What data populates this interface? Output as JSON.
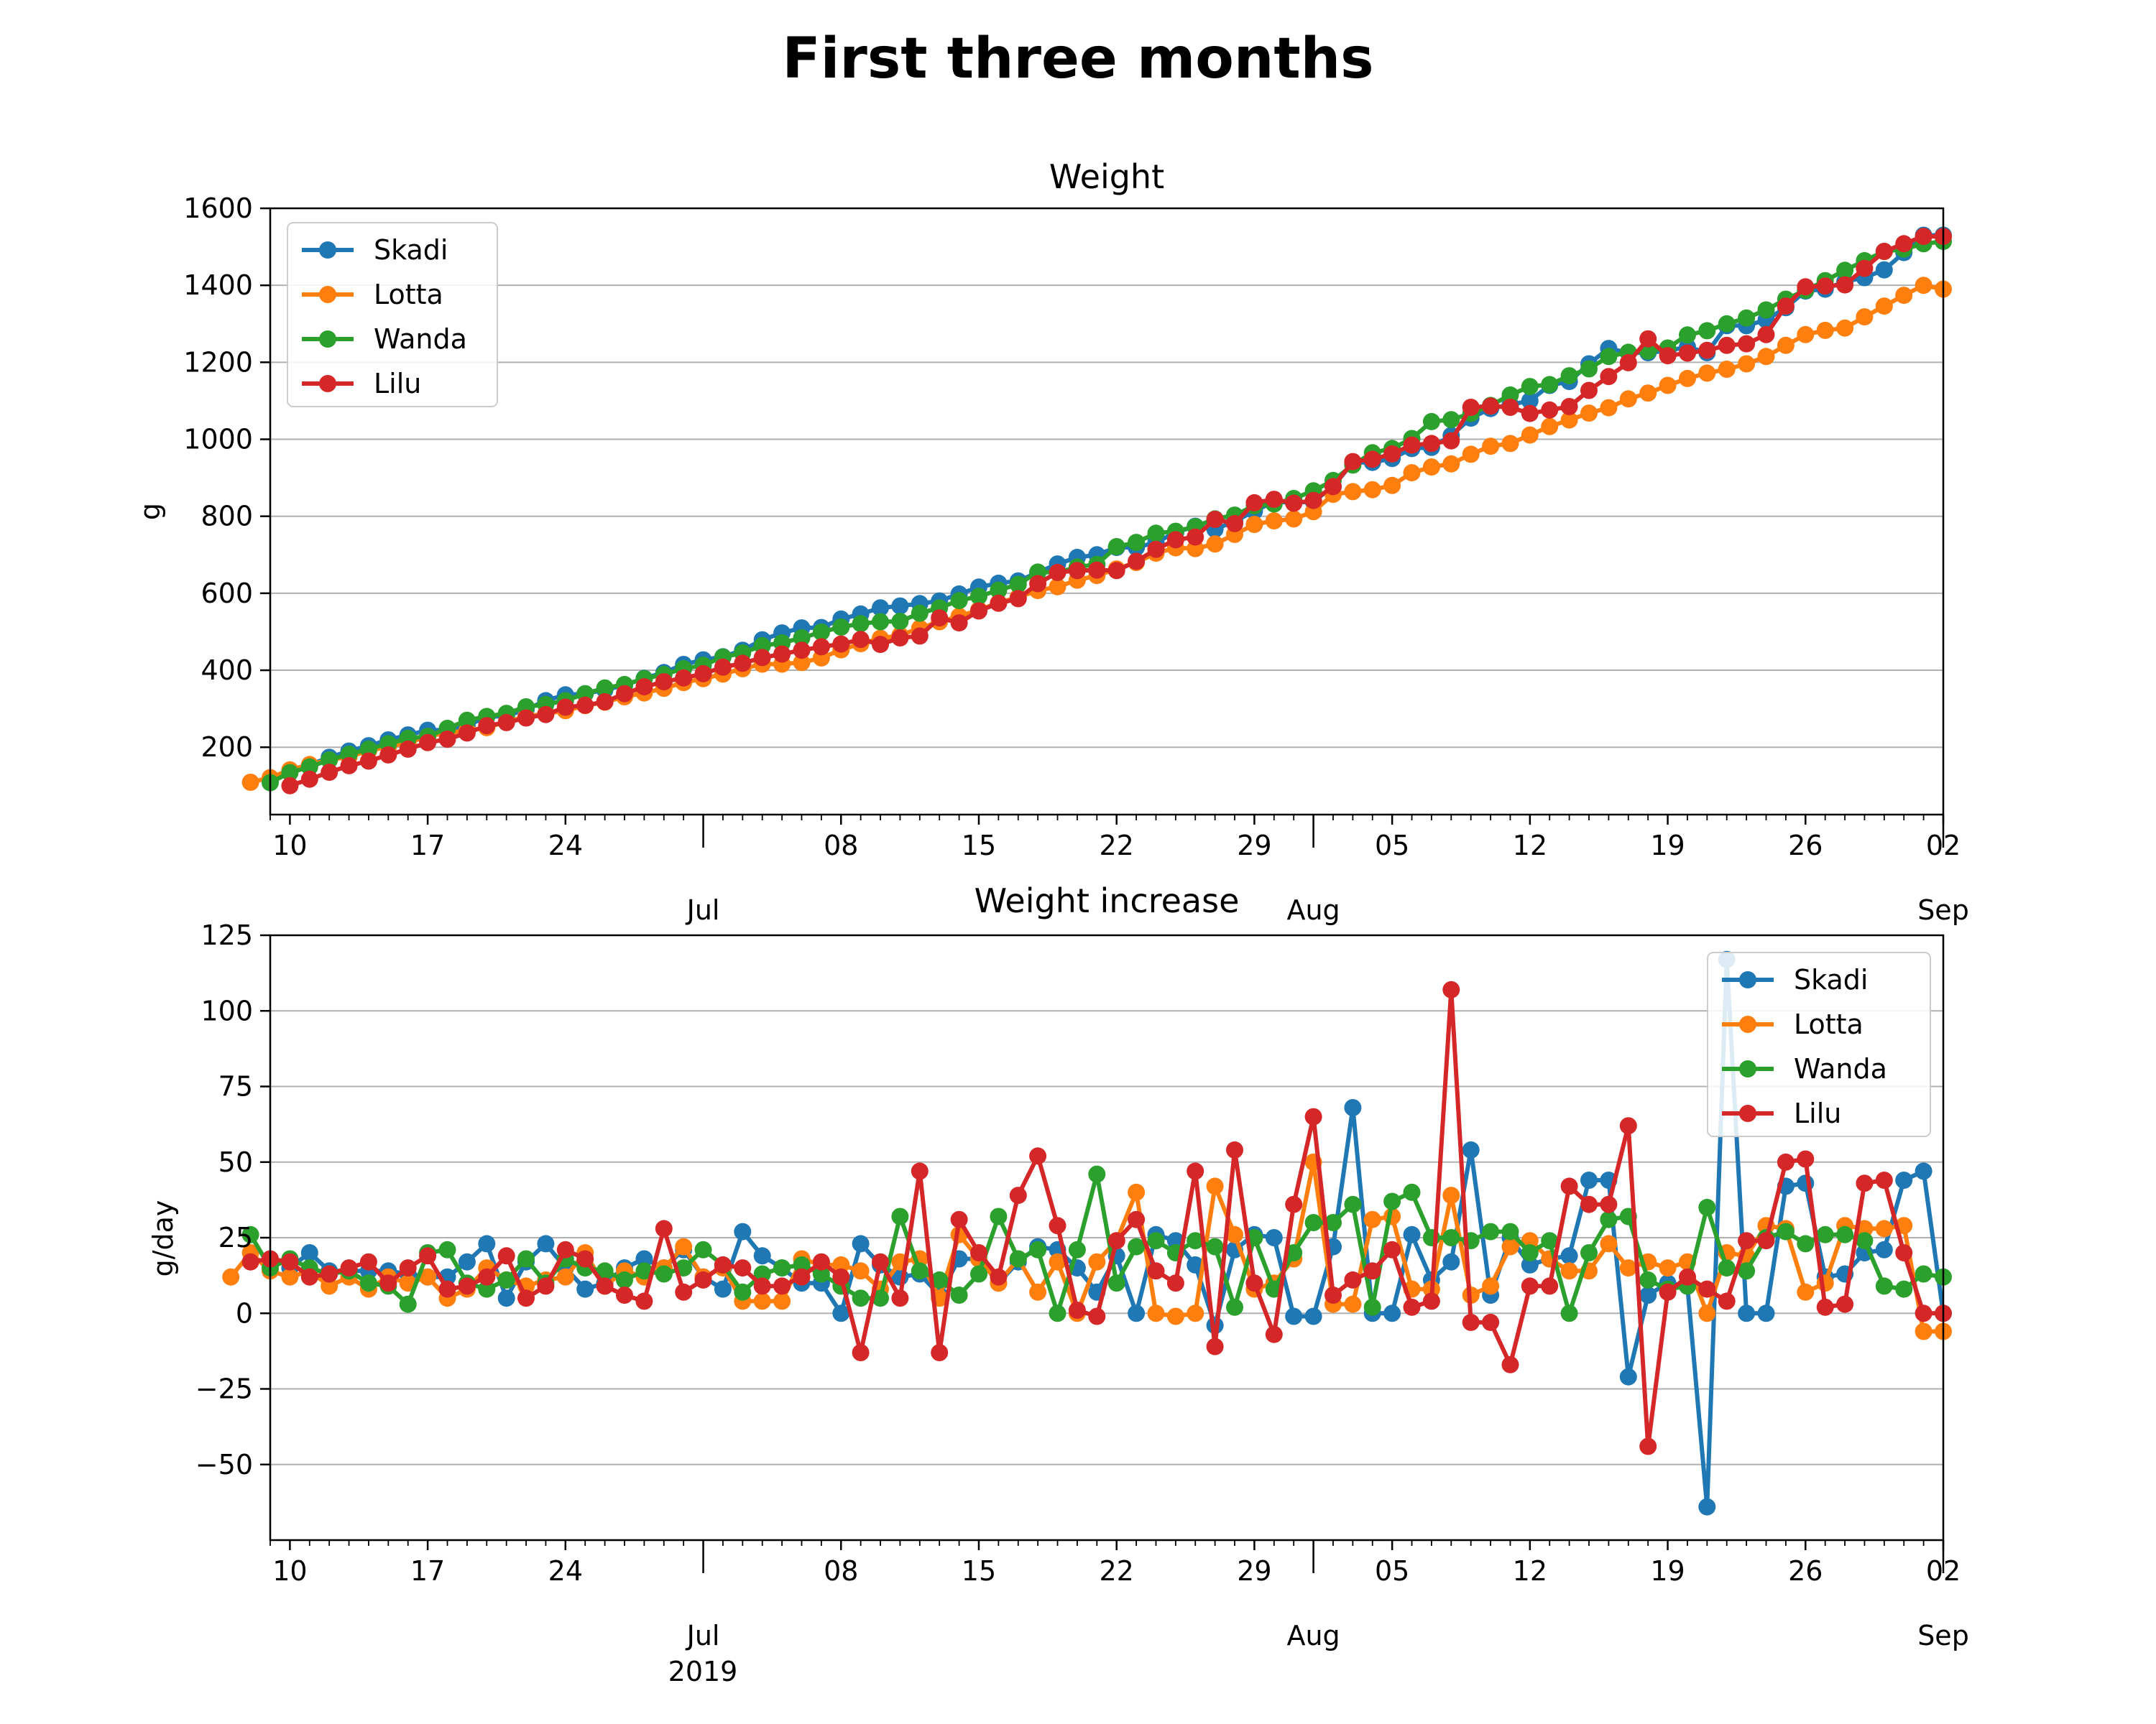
{
  "title": "First three months",
  "colors": {
    "Skadi": "#1f77b4",
    "Lotta": "#ff7f0e",
    "Wanda": "#2ca02c",
    "Lilu": "#d62728"
  },
  "chart_data": [
    {
      "type": "line",
      "title": "Weight",
      "ylabel": "g",
      "xlabel": "",
      "ylim": [
        25,
        1600
      ],
      "yticks": [
        200,
        400,
        600,
        800,
        1000,
        1200,
        1400,
        1600
      ],
      "grid": "y",
      "legend": "top-left",
      "x_start_date": "2019-06-09",
      "x_end_date": "2019-09-02",
      "x_day_ticks": [
        {
          "day": 1,
          "label": "10"
        },
        {
          "day": 8,
          "label": "17"
        },
        {
          "day": 15,
          "label": "24"
        },
        {
          "day": 29,
          "label": "08"
        },
        {
          "day": 36,
          "label": "15"
        },
        {
          "day": 43,
          "label": "22"
        },
        {
          "day": 50,
          "label": "29"
        },
        {
          "day": 57,
          "label": "05"
        },
        {
          "day": 64,
          "label": "12"
        },
        {
          "day": 71,
          "label": "19"
        },
        {
          "day": 78,
          "label": "26"
        },
        {
          "day": 85,
          "label": "02"
        }
      ],
      "x_month_ticks": [
        {
          "day": 22,
          "label": "Jul"
        },
        {
          "day": 53,
          "label": "Aug"
        },
        {
          "day": 85,
          "label": "Sep"
        }
      ],
      "series": [
        {
          "name": "Skadi",
          "values": [
            113,
            140,
            154,
            174,
            190,
            204,
            219,
            232,
            244,
            245,
            256,
            279,
            281,
            298,
            321,
            336,
            339,
            349,
            361,
            379,
            394,
            415,
            427,
            435,
            452,
            479,
            497,
            510,
            511,
            533,
            546,
            562,
            567,
            573,
            580,
            598,
            616,
            626,
            632,
            654,
            676,
            693,
            700,
            719,
            719,
            732,
            758,
            774,
            766,
            787,
            813,
            838,
            835,
            838,
            877,
            940,
            940,
            950,
            976,
            979,
            1010,
            1055,
            1080,
            1090,
            1100,
            1140,
            1150,
            1196,
            1236,
            1225,
            1225,
            1230,
            1240,
            1225,
            1295,
            1295,
            1310,
            1342,
            1385,
            1390,
            1410,
            1420,
            1440,
            1485,
            1530,
            1530
          ]
        },
        {
          "name": "Lotta",
          "values": [
            109,
            121,
            141,
            155,
            167,
            175,
            191,
            201,
            212,
            228,
            238,
            243,
            251,
            266,
            280,
            287,
            295,
            308,
            317,
            331,
            341,
            353,
            368,
            378,
            390,
            404,
            416,
            416,
            420,
            432,
            453,
            469,
            483,
            491,
            509,
            526,
            540,
            557,
            575,
            590,
            607,
            617,
            634,
            646,
            663,
            680,
            704,
            718,
            716,
            728,
            753,
            779,
            788,
            793,
            812,
            857,
            864,
            869,
            880,
            913,
            928,
            936,
            961,
            982,
            989,
            1011,
            1033,
            1050,
            1068,
            1082,
            1105,
            1120,
            1140,
            1158,
            1172,
            1182,
            1196,
            1215,
            1244,
            1272,
            1283,
            1289,
            1318,
            1346,
            1374,
            1400,
            1390
          ]
        },
        {
          "name": "Wanda",
          "values": [
            108,
            134,
            149,
            167,
            182,
            195,
            209,
            223,
            228,
            249,
            270,
            280,
            288,
            305,
            311,
            321,
            339,
            354,
            363,
            378,
            389,
            404,
            413,
            434,
            445,
            464,
            471,
            484,
            499,
            512,
            521,
            526,
            527,
            548,
            562,
            581,
            592,
            608,
            623,
            655,
            654,
            668,
            675,
            721,
            732,
            756,
            761,
            773,
            793,
            803,
            827,
            832,
            846,
            866,
            893,
            933,
            965,
            976,
            1002,
            1046,
            1051,
            1067,
            1088,
            1115,
            1137,
            1142,
            1165,
            1183,
            1215,
            1226,
            1229,
            1237,
            1271,
            1282,
            1300,
            1315,
            1336,
            1364,
            1387,
            1412,
            1439,
            1464,
            1488,
            1494,
            1508,
            1514
          ]
        },
        {
          "name": "Lilu",
          "values": [
            100,
            117,
            135,
            152,
            164,
            180,
            195,
            212,
            221,
            237,
            256,
            264,
            276,
            285,
            304,
            309,
            318,
            339,
            357,
            370,
            380,
            391,
            408,
            418,
            433,
            442,
            452,
            461,
            468,
            480,
            467,
            484,
            489,
            536,
            523,
            554,
            574,
            586,
            625,
            654,
            659,
            660,
            659,
            683,
            714,
            739,
            746,
            792,
            781,
            835,
            844,
            834,
            841,
            877,
            942,
            948,
            962,
            985,
            989,
            996,
            1083,
            1086,
            1083,
            1067,
            1076,
            1085,
            1127,
            1163,
            1199,
            1261,
            1217,
            1224,
            1231,
            1244,
            1248,
            1272,
            1346,
            1396,
            1398,
            1401,
            1444,
            1488,
            1508,
            1527,
            1527
          ]
        }
      ]
    },
    {
      "type": "line",
      "title": "Weight increase",
      "ylabel": "g/day",
      "xlabel": "2019",
      "ylim": [
        -75,
        125
      ],
      "yticks": [
        -50,
        -25,
        0,
        25,
        50,
        75,
        100,
        125
      ],
      "grid": "y",
      "legend": "top-right",
      "x_start_date": "2019-06-09",
      "x_end_date": "2019-09-02",
      "x_day_ticks": [
        {
          "day": 1,
          "label": "10"
        },
        {
          "day": 8,
          "label": "17"
        },
        {
          "day": 15,
          "label": "24"
        },
        {
          "day": 29,
          "label": "08"
        },
        {
          "day": 36,
          "label": "15"
        },
        {
          "day": 43,
          "label": "22"
        },
        {
          "day": 50,
          "label": "29"
        },
        {
          "day": 57,
          "label": "05"
        },
        {
          "day": 64,
          "label": "12"
        },
        {
          "day": 71,
          "label": "19"
        },
        {
          "day": 78,
          "label": "26"
        },
        {
          "day": 85,
          "label": "02"
        }
      ],
      "x_month_ticks": [
        {
          "day": 22,
          "label": "Jul"
        },
        {
          "day": 53,
          "label": "Aug"
        },
        {
          "day": 85,
          "label": "Sep"
        }
      ],
      "series": [
        {
          "name": "Skadi",
          "values": [
            null,
            15,
            20,
            14,
            14,
            14,
            14,
            13,
            12,
            12,
            17,
            23,
            5,
            17,
            23,
            15,
            8,
            10,
            15,
            18,
            15,
            21,
            12,
            8,
            27,
            19,
            15,
            10,
            10,
            0,
            23,
            16,
            12,
            13,
            6,
            18,
            18,
            10,
            17,
            22,
            21,
            15,
            7,
            19,
            0,
            26,
            24,
            16,
            -4,
            21,
            26,
            25,
            -1,
            -1,
            22,
            68,
            0,
            0,
            26,
            11,
            17,
            54,
            6,
            25,
            16,
            18,
            19,
            44,
            44,
            -21,
            6,
            10,
            9,
            -64,
            117,
            0,
            0,
            42,
            43,
            12,
            13,
            20,
            21,
            44,
            47,
            0
          ]
        },
        {
          "name": "Lotta",
          "values": [
            12,
            20,
            14,
            12,
            14,
            9,
            12,
            8,
            12,
            10,
            12,
            5,
            8,
            15,
            11,
            9,
            11,
            12,
            20,
            9,
            14,
            12,
            15,
            22,
            12,
            15,
            4,
            4,
            4,
            18,
            16,
            16,
            14,
            8,
            17,
            18,
            5,
            26,
            18,
            10,
            18,
            7,
            17,
            0,
            17,
            24,
            40,
            0,
            -1,
            0,
            42,
            26,
            8,
            10,
            18,
            50,
            3,
            3,
            31,
            32,
            8,
            8,
            39,
            6,
            9,
            22,
            24,
            18,
            14,
            14,
            23,
            15,
            17,
            15,
            17,
            0,
            20,
            19,
            29,
            28,
            7,
            10,
            29,
            28,
            28,
            29,
            -6,
            -6
          ]
        },
        {
          "name": "Wanda",
          "values": [
            26,
            15,
            18,
            15,
            13,
            14,
            10,
            9,
            3,
            20,
            21,
            10,
            8,
            11,
            18,
            10,
            18,
            15,
            14,
            11,
            14,
            13,
            15,
            21,
            16,
            7,
            13,
            15,
            16,
            13,
            9,
            5,
            5,
            32,
            14,
            11,
            6,
            13,
            32,
            18,
            21,
            0,
            21,
            46,
            10,
            22,
            24,
            20,
            24,
            22,
            2,
            25,
            8,
            20,
            30,
            30,
            36,
            2,
            37,
            40,
            25,
            25,
            24,
            27,
            27,
            20,
            24,
            0,
            20,
            31,
            32,
            11,
            8,
            9,
            35,
            15,
            14,
            25,
            27,
            23,
            26,
            26,
            24,
            9,
            8,
            13,
            12
          ]
        },
        {
          "name": "Lilu",
          "values": [
            17,
            18,
            17,
            12,
            13,
            15,
            17,
            10,
            15,
            19,
            8,
            9,
            12,
            19,
            5,
            9,
            21,
            18,
            9,
            6,
            4,
            28,
            7,
            11,
            16,
            15,
            9,
            9,
            12,
            17,
            12,
            -13,
            17,
            5,
            47,
            -13,
            31,
            20,
            12,
            39,
            52,
            29,
            1,
            -1,
            24,
            31,
            14,
            10,
            47,
            -11,
            54,
            10,
            -7,
            36,
            65,
            6,
            11,
            14,
            21,
            2,
            4,
            107,
            -3,
            -3,
            -17,
            9,
            9,
            42,
            36,
            36,
            62,
            -44,
            7,
            12,
            8,
            4,
            24,
            24,
            50,
            51,
            2,
            3,
            43,
            44,
            20,
            0,
            0
          ]
        }
      ]
    }
  ]
}
